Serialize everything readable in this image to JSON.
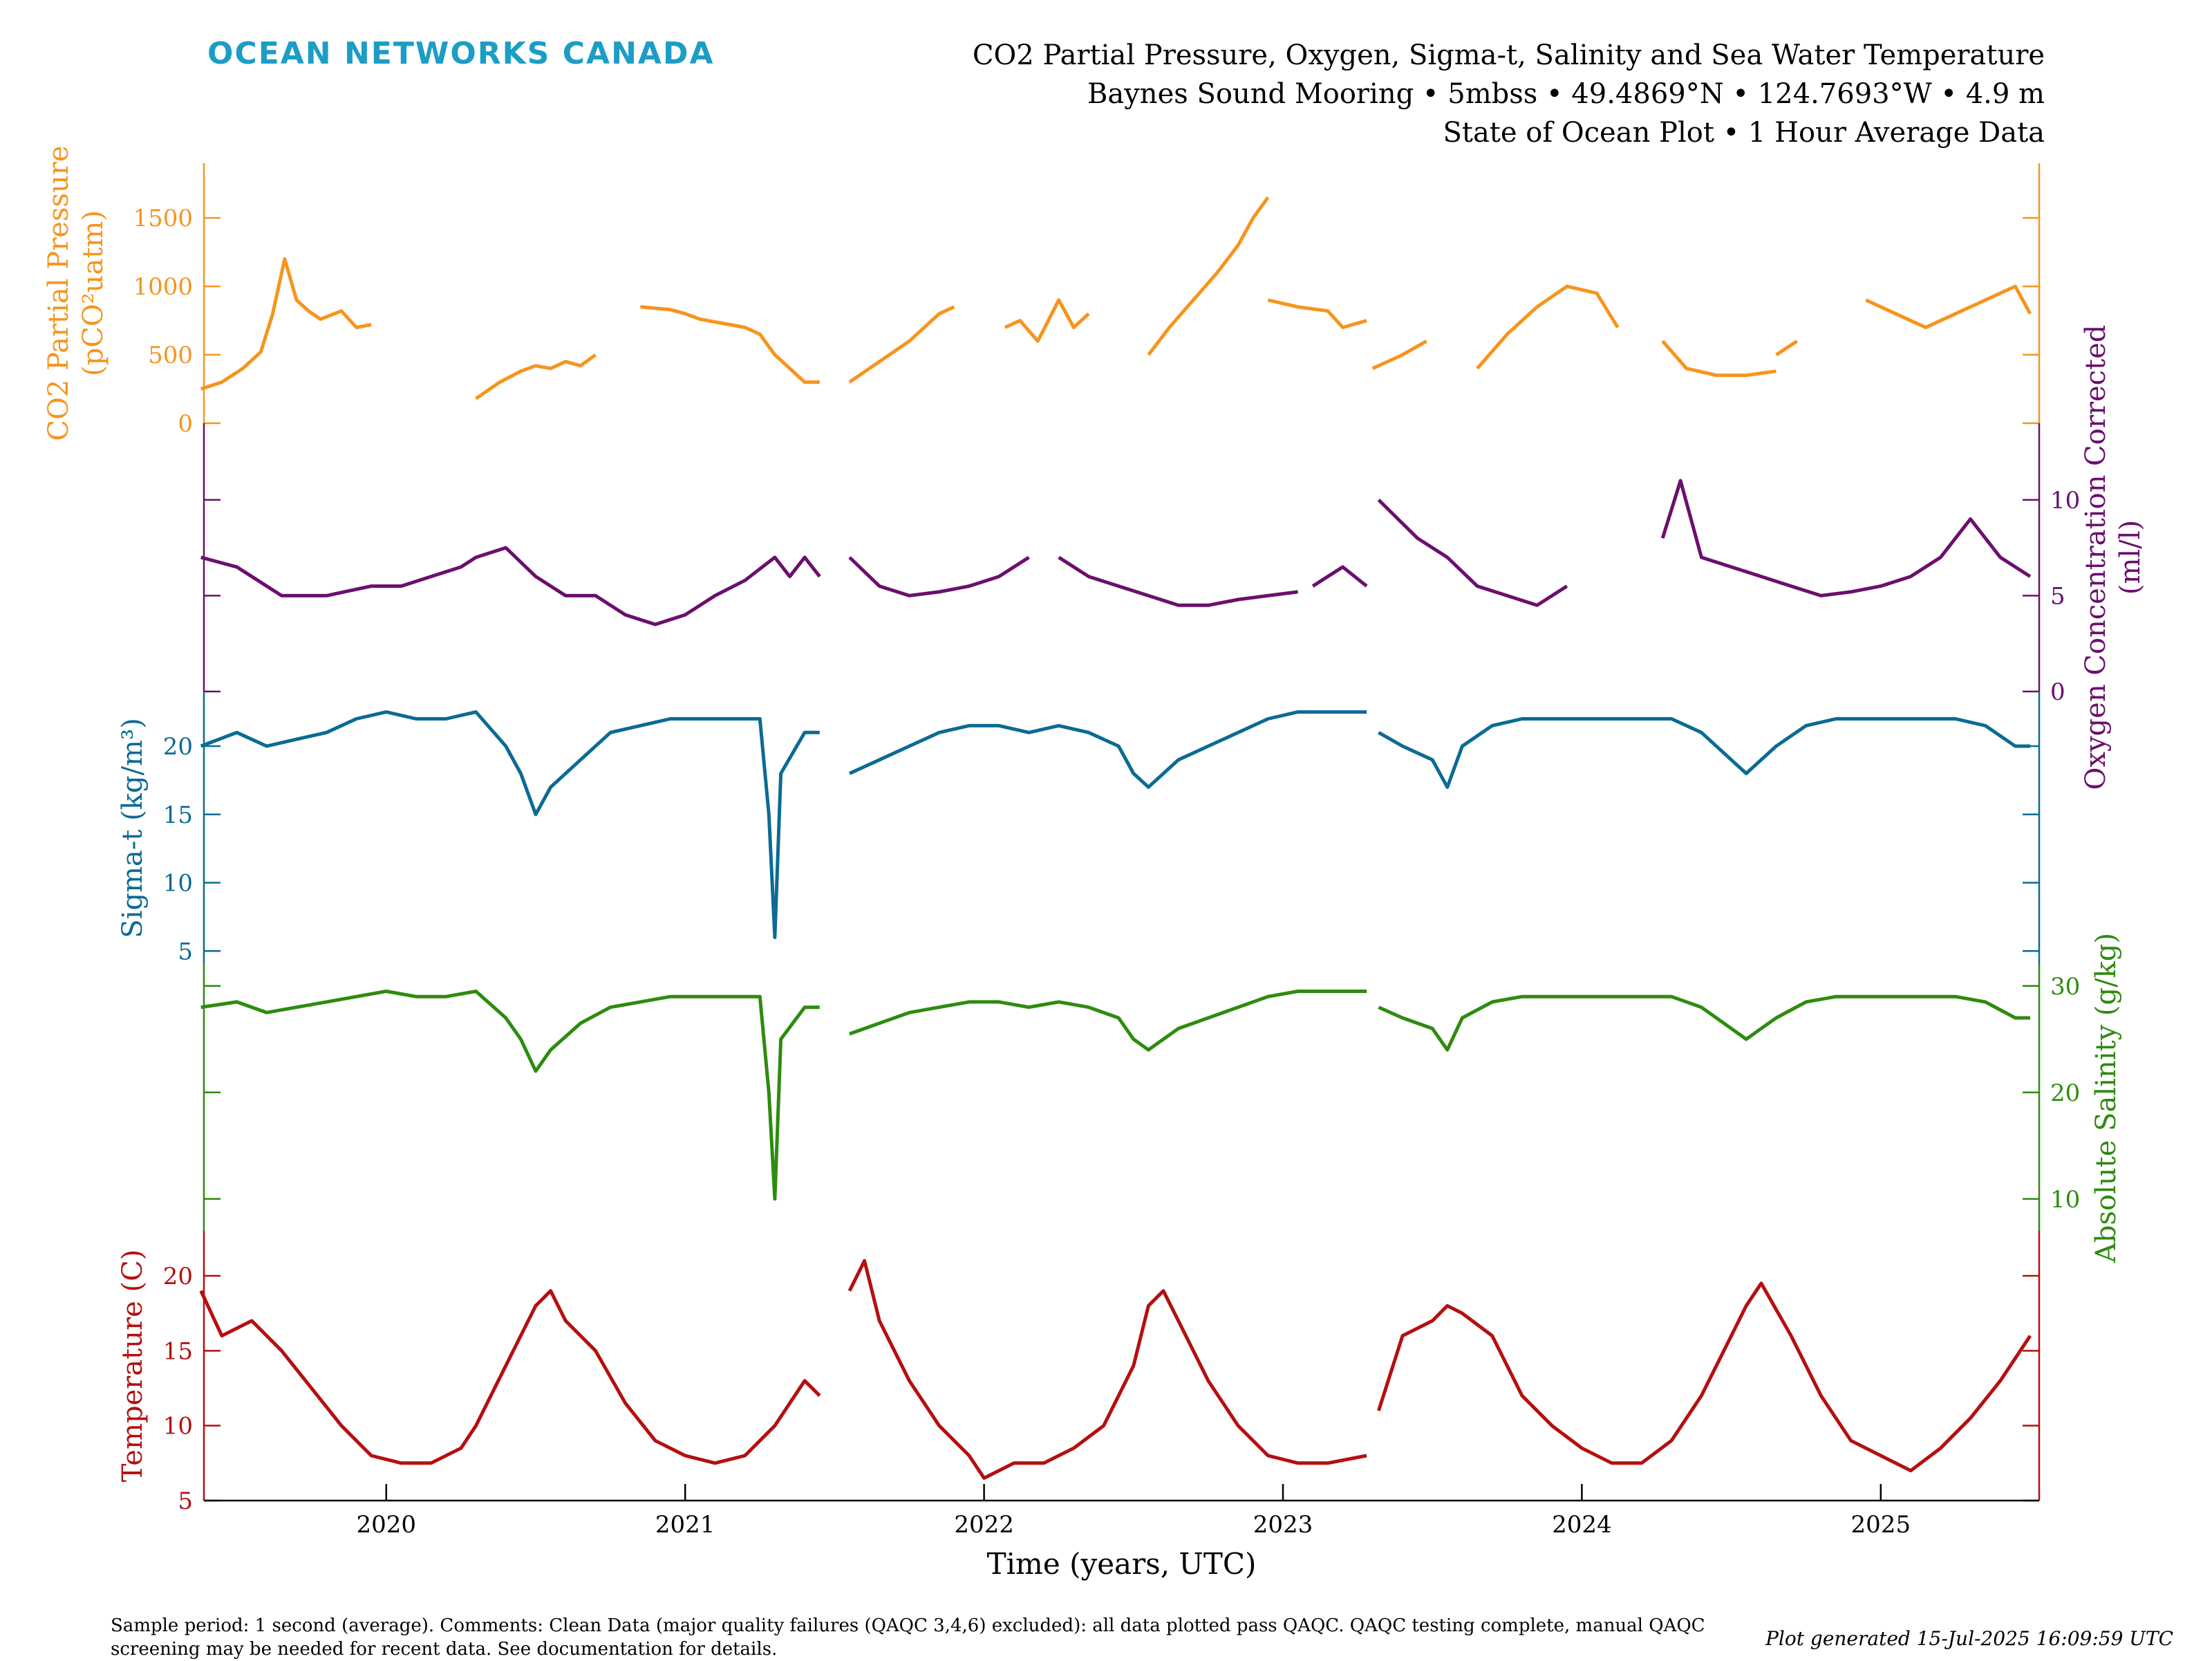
{
  "brand": "OCEAN NETWORKS CANADA",
  "header": {
    "title_line1": "CO2 Partial Pressure, Oxygen, Sigma-t, Salinity and Sea Water Temperature",
    "title_line2": "Baynes Sound Mooring • 5mbss • 49.4869°N • 124.7693°W • 4.9 m",
    "title_line3": "State of Ocean Plot • 1 Hour Average Data"
  },
  "footer": {
    "note": "Sample period: 1 second (average). Comments: Clean Data (major quality failures (QAQC 3,4,6) excluded): all data plotted pass QAQC. QAQC testing complete, manual QAQC screening may be needed for recent data. See documentation for details.",
    "generated": "Plot generated 15-Jul-2025 16:09:59 UTC"
  },
  "chart_data": {
    "type": "line",
    "xlabel": "Time (years, UTC)",
    "x_ticks": [
      "2020",
      "2021",
      "2022",
      "2023",
      "2024",
      "2025"
    ],
    "xlim": [
      "2019-05-15",
      "2025-07-15"
    ],
    "colors": {
      "co2": "#f7941d",
      "oxygen": "#6b0f6e",
      "sigma": "#0b6b94",
      "salinity": "#2e8b0f",
      "temperature": "#b50f0f"
    },
    "panels": [
      {
        "key": "co2",
        "ylabel_line1": "CO2 Partial Pressure",
        "ylabel_line2": "(pCO²uatm)",
        "axis_side": "left",
        "ylim": [
          0,
          1900
        ],
        "y_ticks": [
          0,
          500,
          1000,
          1500
        ],
        "series": [
          {
            "x": [
              2019.38,
              2019.45,
              2019.52,
              2019.58,
              2019.62,
              2019.66,
              2019.7,
              2019.74,
              2019.78,
              2019.85,
              2019.9,
              2019.95
            ],
            "y": [
              250,
              300,
              400,
              520,
              800,
              1200,
              900,
              820,
              760,
              820,
              700,
              720
            ]
          },
          {
            "x": [
              2020.3,
              2020.38,
              2020.45,
              2020.5,
              2020.55,
              2020.6,
              2020.65,
              2020.7
            ],
            "y": [
              180,
              300,
              380,
              420,
              400,
              450,
              420,
              500
            ]
          },
          {
            "x": [
              2020.85,
              2020.95,
              2021.0,
              2021.05,
              2021.1,
              2021.15,
              2021.2,
              2021.25,
              2021.3,
              2021.35,
              2021.4,
              2021.45
            ],
            "y": [
              850,
              830,
              800,
              760,
              740,
              720,
              700,
              650,
              500,
              400,
              300,
              300
            ]
          },
          {
            "x": [
              2021.55,
              2021.65,
              2021.75,
              2021.85,
              2021.9
            ],
            "y": [
              300,
              450,
              600,
              800,
              850
            ]
          },
          {
            "x": [
              2022.07,
              2022.12,
              2022.18,
              2022.25,
              2022.3,
              2022.35
            ],
            "y": [
              700,
              750,
              600,
              900,
              700,
              800
            ]
          },
          {
            "x": [
              2022.55,
              2022.62,
              2022.7,
              2022.78,
              2022.85,
              2022.9,
              2022.95
            ],
            "y": [
              500,
              700,
              900,
              1100,
              1300,
              1500,
              1650
            ]
          },
          {
            "x": [
              2022.95,
              2023.05,
              2023.15,
              2023.2,
              2023.28
            ],
            "y": [
              900,
              850,
              820,
              700,
              750
            ]
          },
          {
            "x": [
              2023.3,
              2023.4,
              2023.48
            ],
            "y": [
              400,
              500,
              600
            ]
          },
          {
            "x": [
              2023.65,
              2023.75,
              2023.85,
              2023.95,
              2024.05,
              2024.12
            ],
            "y": [
              400,
              650,
              850,
              1000,
              950,
              700
            ]
          },
          {
            "x": [
              2024.27,
              2024.35,
              2024.45,
              2024.55,
              2024.65
            ],
            "y": [
              600,
              400,
              350,
              350,
              380
            ]
          },
          {
            "x": [
              2024.65,
              2024.72
            ],
            "y": [
              500,
              600
            ]
          },
          {
            "x": [
              2024.95,
              2025.05,
              2025.15,
              2025.25,
              2025.35,
              2025.45,
              2025.5
            ],
            "y": [
              900,
              800,
              700,
              800,
              900,
              1000,
              800
            ]
          }
        ]
      },
      {
        "key": "oxygen",
        "ylabel_line1": "Oxygen Concentration Corrected",
        "ylabel_line2": "(ml/l)",
        "axis_side": "right",
        "ylim": [
          0,
          14
        ],
        "y_ticks": [
          0,
          5,
          10
        ],
        "series": [
          {
            "x": [
              2019.38,
              2019.5,
              2019.65,
              2019.8,
              2019.95,
              2020.05,
              2020.15,
              2020.25,
              2020.3,
              2020.4,
              2020.5,
              2020.6,
              2020.7,
              2020.8,
              2020.9,
              2021.0,
              2021.1,
              2021.2,
              2021.3,
              2021.35,
              2021.4,
              2021.45
            ],
            "y": [
              7,
              6.5,
              5,
              5,
              5.5,
              5.5,
              6,
              6.5,
              7,
              7.5,
              6,
              5,
              5,
              4,
              3.5,
              4,
              5,
              5.8,
              7,
              6,
              7,
              6
            ]
          },
          {
            "x": [
              2021.55,
              2021.65,
              2021.75,
              2021.85,
              2021.95,
              2022.05,
              2022.1,
              2022.15
            ],
            "y": [
              7,
              5.5,
              5,
              5.2,
              5.5,
              6,
              6.5,
              7
            ]
          },
          {
            "x": [
              2022.25,
              2022.35,
              2022.45,
              2022.55,
              2022.65,
              2022.75,
              2022.85,
              2022.95,
              2023.05
            ],
            "y": [
              7,
              6,
              5.5,
              5,
              4.5,
              4.5,
              4.8,
              5,
              5.2
            ]
          },
          {
            "x": [
              2023.1,
              2023.2,
              2023.28
            ],
            "y": [
              5.5,
              6.5,
              5.5
            ]
          },
          {
            "x": [
              2023.32,
              2023.45,
              2023.55,
              2023.65,
              2023.75,
              2023.85,
              2023.95
            ],
            "y": [
              10,
              8,
              7,
              5.5,
              5,
              4.5,
              5.5
            ]
          },
          {
            "x": [
              2024.27,
              2024.33,
              2024.4,
              2024.5,
              2024.6,
              2024.7,
              2024.8,
              2024.9,
              2025.0,
              2025.1,
              2025.2,
              2025.3,
              2025.4,
              2025.5
            ],
            "y": [
              8,
              11,
              7,
              6.5,
              6,
              5.5,
              5,
              5.2,
              5.5,
              6,
              7,
              9,
              7,
              6
            ]
          }
        ]
      },
      {
        "key": "sigma",
        "ylabel_line1": "Sigma-t (kg/m³)",
        "axis_side": "left",
        "ylim": [
          4,
          24
        ],
        "y_ticks": [
          5,
          10,
          15,
          20
        ],
        "series": [
          {
            "x": [
              2019.38,
              2019.5,
              2019.6,
              2019.7,
              2019.8,
              2019.9,
              2020.0,
              2020.1,
              2020.2,
              2020.3,
              2020.4,
              2020.45,
              2020.5,
              2020.55,
              2020.65,
              2020.75,
              2020.85,
              2020.95,
              2021.05,
              2021.15,
              2021.25,
              2021.28,
              2021.3,
              2021.32,
              2021.4,
              2021.45
            ],
            "y": [
              20,
              21,
              20,
              20.5,
              21,
              22,
              22.5,
              22,
              22,
              22.5,
              20,
              18,
              15,
              17,
              19,
              21,
              21.5,
              22,
              22,
              22,
              22,
              15,
              6,
              18,
              21,
              21
            ]
          },
          {
            "x": [
              2021.55,
              2021.65,
              2021.75,
              2021.85,
              2021.95,
              2022.05,
              2022.15,
              2022.25,
              2022.35,
              2022.45,
              2022.5,
              2022.55,
              2022.65,
              2022.75,
              2022.85,
              2022.95,
              2023.05,
              2023.15,
              2023.28
            ],
            "y": [
              18,
              19,
              20,
              21,
              21.5,
              21.5,
              21,
              21.5,
              21,
              20,
              18,
              17,
              19,
              20,
              21,
              22,
              22.5,
              22.5,
              22.5
            ]
          },
          {
            "x": [
              2023.32,
              2023.4,
              2023.5,
              2023.55,
              2023.6,
              2023.7,
              2023.8,
              2023.9,
              2024.0,
              2024.1,
              2024.2,
              2024.3,
              2024.4,
              2024.5,
              2024.55,
              2024.65,
              2024.75,
              2024.85,
              2024.95,
              2025.05,
              2025.15,
              2025.25,
              2025.35,
              2025.45,
              2025.5
            ],
            "y": [
              21,
              20,
              19,
              17,
              20,
              21.5,
              22,
              22,
              22,
              22,
              22,
              22,
              21,
              19,
              18,
              20,
              21.5,
              22,
              22,
              22,
              22,
              22,
              21.5,
              20,
              20
            ]
          }
        ]
      },
      {
        "key": "salinity",
        "ylabel_line1": "Absolute Salinity (g/kg)",
        "axis_side": "right",
        "ylim": [
          7,
          32
        ],
        "y_ticks": [
          10,
          20,
          30
        ],
        "series": [
          {
            "x": [
              2019.38,
              2019.5,
              2019.6,
              2019.7,
              2019.8,
              2019.9,
              2020.0,
              2020.1,
              2020.2,
              2020.3,
              2020.4,
              2020.45,
              2020.5,
              2020.55,
              2020.65,
              2020.75,
              2020.85,
              2020.95,
              2021.05,
              2021.15,
              2021.25,
              2021.28,
              2021.3,
              2021.32,
              2021.4,
              2021.45
            ],
            "y": [
              28,
              28.5,
              27.5,
              28,
              28.5,
              29,
              29.5,
              29,
              29,
              29.5,
              27,
              25,
              22,
              24,
              26.5,
              28,
              28.5,
              29,
              29,
              29,
              29,
              20,
              10,
              25,
              28,
              28
            ]
          },
          {
            "x": [
              2021.55,
              2021.65,
              2021.75,
              2021.85,
              2021.95,
              2022.05,
              2022.15,
              2022.25,
              2022.35,
              2022.45,
              2022.5,
              2022.55,
              2022.65,
              2022.75,
              2022.85,
              2022.95,
              2023.05,
              2023.15,
              2023.28
            ],
            "y": [
              25.5,
              26.5,
              27.5,
              28,
              28.5,
              28.5,
              28,
              28.5,
              28,
              27,
              25,
              24,
              26,
              27,
              28,
              29,
              29.5,
              29.5,
              29.5
            ]
          },
          {
            "x": [
              2023.32,
              2023.4,
              2023.5,
              2023.55,
              2023.6,
              2023.7,
              2023.8,
              2023.9,
              2024.0,
              2024.1,
              2024.2,
              2024.3,
              2024.4,
              2024.5,
              2024.55,
              2024.65,
              2024.75,
              2024.85,
              2024.95,
              2025.05,
              2025.15,
              2025.25,
              2025.35,
              2025.45,
              2025.5
            ],
            "y": [
              28,
              27,
              26,
              24,
              27,
              28.5,
              29,
              29,
              29,
              29,
              29,
              29,
              28,
              26,
              25,
              27,
              28.5,
              29,
              29,
              29,
              29,
              29,
              28.5,
              27,
              27
            ]
          }
        ]
      },
      {
        "key": "temperature",
        "ylabel_line1": "Temperature (C)",
        "axis_side": "left",
        "ylim": [
          5,
          23
        ],
        "y_ticks": [
          5,
          10,
          15,
          20
        ],
        "series": [
          {
            "x": [
              2019.38,
              2019.45,
              2019.55,
              2019.65,
              2019.75,
              2019.85,
              2019.95,
              2020.05,
              2020.15,
              2020.25,
              2020.3,
              2020.4,
              2020.5,
              2020.55,
              2020.6,
              2020.7,
              2020.8,
              2020.9,
              2021.0,
              2021.1,
              2021.2,
              2021.3,
              2021.4,
              2021.45
            ],
            "y": [
              19,
              16,
              17,
              15,
              12.5,
              10,
              8,
              7.5,
              7.5,
              8.5,
              10,
              14,
              18,
              19,
              17,
              15,
              11.5,
              9,
              8,
              7.5,
              8,
              10,
              13,
              12
            ]
          },
          {
            "x": [
              2021.55,
              2021.6,
              2021.65,
              2021.75,
              2021.85,
              2021.95,
              2022.0,
              2022.1,
              2022.2,
              2022.3,
              2022.4,
              2022.5,
              2022.55,
              2022.6,
              2022.65,
              2022.75,
              2022.85,
              2022.95,
              2023.05,
              2023.15,
              2023.28
            ],
            "y": [
              19,
              21,
              17,
              13,
              10,
              8,
              6.5,
              7.5,
              7.5,
              8.5,
              10,
              14,
              18,
              19,
              17,
              13,
              10,
              8,
              7.5,
              7.5,
              8
            ]
          },
          {
            "x": [
              2023.32,
              2023.4,
              2023.5,
              2023.55,
              2023.6,
              2023.7,
              2023.8,
              2023.9,
              2024.0,
              2024.1,
              2024.2,
              2024.3,
              2024.4,
              2024.5,
              2024.55,
              2024.6,
              2024.7,
              2024.8,
              2024.9,
              2025.0,
              2025.1,
              2025.2,
              2025.3,
              2025.4,
              2025.5
            ],
            "y": [
              11,
              16,
              17,
              18,
              17.5,
              16,
              12,
              10,
              8.5,
              7.5,
              7.5,
              9,
              12,
              16,
              18,
              19.5,
              16,
              12,
              9,
              8,
              7,
              8.5,
              10.5,
              13,
              16
            ]
          }
        ]
      }
    ]
  }
}
